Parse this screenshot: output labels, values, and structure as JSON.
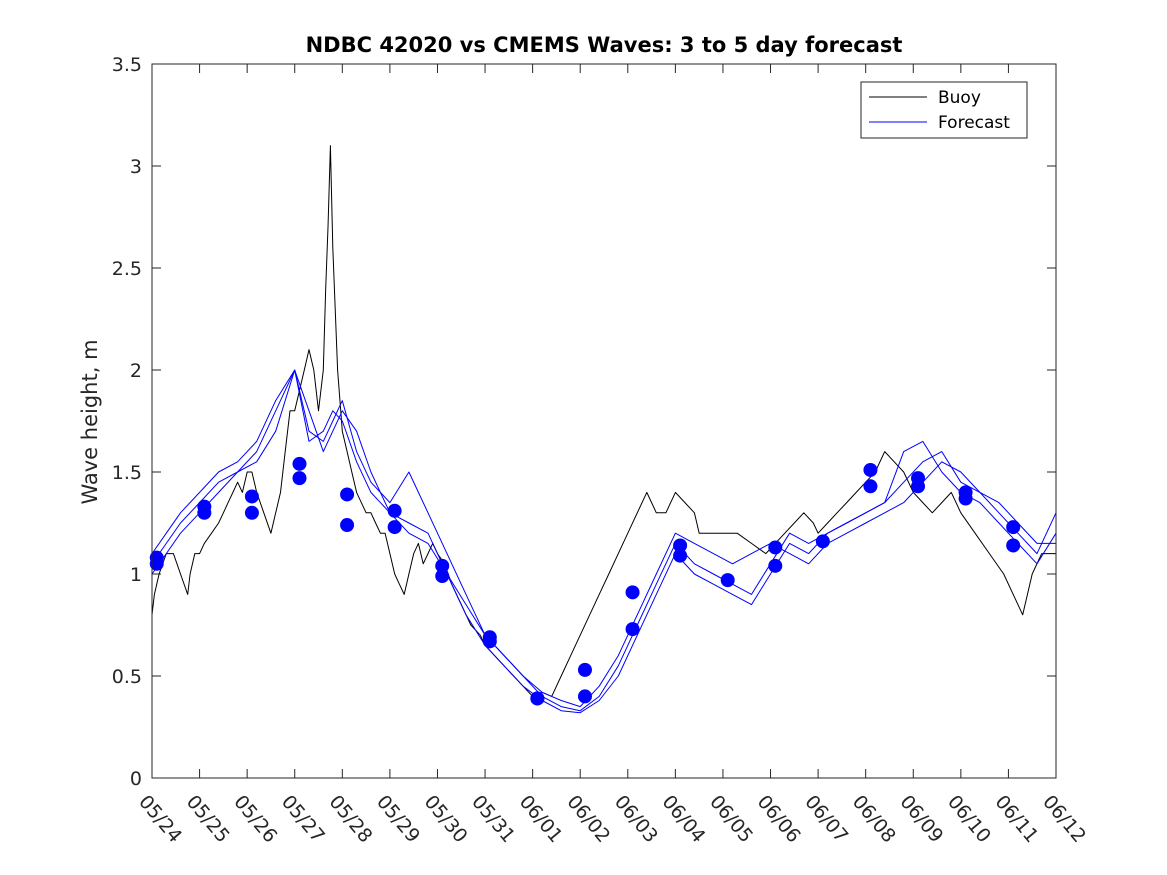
{
  "chart_data": {
    "type": "line",
    "title": "NDBC 42020 vs CMEMS Waves: 3 to 5 day forecast",
    "xlabel": "",
    "ylabel": "Wave height, m",
    "xlim": [
      0,
      19
    ],
    "ylim": [
      0,
      3.5
    ],
    "x_ticks": [
      "05/24",
      "05/25",
      "05/26",
      "05/27",
      "05/28",
      "05/29",
      "05/30",
      "05/31",
      "06/01",
      "06/02",
      "06/03",
      "06/04",
      "06/05",
      "06/06",
      "06/07",
      "06/08",
      "06/09",
      "06/10",
      "06/11",
      "06/12"
    ],
    "y_ticks": [
      "0",
      "0.5",
      "1",
      "1.5",
      "2",
      "2.5",
      "3",
      "3.5"
    ],
    "grid": false,
    "legend": {
      "placement": "top-right",
      "entries": [
        "Buoy",
        "Forecast"
      ]
    },
    "colors": {
      "Buoy": "#000000",
      "Forecast": "#0000ff",
      "markers": "#0000ff"
    },
    "series": [
      {
        "name": "Buoy",
        "x": [
          0.0,
          0.05,
          0.15,
          0.3,
          0.45,
          0.6,
          0.75,
          0.8,
          0.9,
          1.0,
          1.1,
          1.25,
          1.4,
          1.5,
          1.6,
          1.7,
          1.8,
          1.9,
          2.0,
          2.1,
          2.2,
          2.35,
          2.5,
          2.6,
          2.7,
          2.8,
          2.9,
          3.0,
          3.1,
          3.2,
          3.3,
          3.4,
          3.5,
          3.6,
          3.65,
          3.7,
          3.75,
          3.8,
          3.9,
          4.0,
          4.1,
          4.2,
          4.3,
          4.4,
          4.5,
          4.6,
          4.7,
          4.8,
          4.9,
          5.0,
          5.1,
          5.2,
          5.3,
          5.4,
          5.5,
          5.6,
          5.7,
          5.8,
          5.9,
          6.0,
          6.15,
          6.3,
          6.5,
          6.7,
          6.9,
          7.0,
          7.2,
          7.4,
          7.6,
          7.8,
          8.0,
          8.2,
          8.4,
          8.6,
          8.8,
          9.0,
          9.2,
          9.4,
          9.6,
          9.8,
          10.0,
          10.2,
          10.4,
          10.5,
          10.6,
          10.8,
          11.0,
          11.2,
          11.4,
          11.5,
          11.6,
          11.8,
          12.0,
          12.3,
          12.6,
          12.9,
          13.1,
          13.3,
          13.5,
          13.7,
          13.9,
          14.0,
          14.2,
          14.4,
          14.6,
          14.8,
          15.0,
          15.2,
          15.4,
          15.6,
          15.8,
          16.0,
          16.2,
          16.4,
          16.6,
          16.8,
          17.0,
          17.3,
          17.6,
          17.9,
          18.1,
          18.3,
          18.5,
          18.7,
          19.0
        ],
        "values": [
          0.8,
          0.9,
          1.0,
          1.1,
          1.1,
          1.0,
          0.9,
          1.0,
          1.1,
          1.1,
          1.15,
          1.2,
          1.25,
          1.3,
          1.35,
          1.4,
          1.45,
          1.4,
          1.5,
          1.5,
          1.4,
          1.3,
          1.2,
          1.3,
          1.4,
          1.6,
          1.8,
          1.8,
          1.9,
          2.0,
          2.1,
          2.0,
          1.8,
          2.0,
          2.4,
          2.7,
          3.1,
          2.6,
          2.0,
          1.7,
          1.6,
          1.5,
          1.4,
          1.35,
          1.3,
          1.3,
          1.25,
          1.2,
          1.2,
          1.1,
          1.0,
          0.95,
          0.9,
          1.0,
          1.1,
          1.15,
          1.05,
          1.1,
          1.15,
          1.1,
          1.05,
          0.95,
          0.85,
          0.75,
          0.7,
          0.65,
          0.6,
          0.55,
          0.5,
          0.45,
          0.4,
          0.42,
          0.4,
          0.5,
          0.6,
          0.7,
          0.8,
          0.9,
          1.0,
          1.1,
          1.2,
          1.3,
          1.4,
          1.35,
          1.3,
          1.3,
          1.4,
          1.35,
          1.3,
          1.2,
          1.2,
          1.2,
          1.2,
          1.2,
          1.15,
          1.1,
          1.15,
          1.2,
          1.25,
          1.3,
          1.25,
          1.2,
          1.25,
          1.3,
          1.35,
          1.4,
          1.45,
          1.5,
          1.6,
          1.55,
          1.5,
          1.4,
          1.35,
          1.3,
          1.35,
          1.4,
          1.3,
          1.2,
          1.1,
          1.0,
          0.9,
          0.8,
          1.0,
          1.1,
          1.1
        ]
      },
      {
        "name": "Forecast",
        "x": [
          0.0,
          0.3,
          0.6,
          1.0,
          1.4,
          1.8,
          2.2,
          2.6,
          3.0,
          3.3,
          3.6,
          3.8,
          4.0,
          4.3,
          4.6,
          5.0,
          5.4,
          5.8,
          6.2,
          6.6,
          7.0,
          7.4,
          7.8,
          8.2,
          8.6,
          9.0,
          9.4,
          9.8,
          10.2,
          10.6,
          11.0,
          11.4,
          11.8,
          12.2,
          12.6,
          13.0,
          13.4,
          13.8,
          14.2,
          14.6,
          15.0,
          15.4,
          15.8,
          16.2,
          16.6,
          17.0,
          17.4,
          17.8,
          18.2,
          18.6,
          19.0
        ],
        "values": [
          1.0,
          1.1,
          1.2,
          1.3,
          1.4,
          1.5,
          1.55,
          1.7,
          2.0,
          1.8,
          1.6,
          1.7,
          1.8,
          1.7,
          1.5,
          1.3,
          1.2,
          1.15,
          1.0,
          0.85,
          0.7,
          0.6,
          0.5,
          0.42,
          0.38,
          0.35,
          0.45,
          0.6,
          0.8,
          1.0,
          1.2,
          1.15,
          1.1,
          1.05,
          1.1,
          1.15,
          1.1,
          1.05,
          1.15,
          1.2,
          1.25,
          1.3,
          1.35,
          1.45,
          1.55,
          1.5,
          1.4,
          1.35,
          1.25,
          1.15,
          1.15
        ]
      },
      {
        "name": "",
        "x": [
          0.0,
          0.3,
          0.6,
          1.0,
          1.4,
          1.8,
          2.2,
          2.6,
          3.0,
          3.3,
          3.6,
          3.8,
          4.0,
          4.3,
          4.6,
          5.0,
          5.4,
          5.8,
          6.2,
          6.6,
          7.0,
          7.4,
          7.8,
          8.2,
          8.6,
          9.0,
          9.4,
          9.8,
          10.2,
          10.6,
          11.0,
          11.4,
          11.8,
          12.2,
          12.6,
          13.0,
          13.4,
          13.8,
          14.2,
          14.6,
          15.0,
          15.4,
          15.8,
          16.2,
          16.6,
          17.0,
          17.4,
          17.8,
          18.2,
          18.6,
          19.0
        ],
        "values": [
          1.05,
          1.15,
          1.25,
          1.35,
          1.45,
          1.5,
          1.6,
          1.8,
          2.0,
          1.7,
          1.65,
          1.75,
          1.85,
          1.6,
          1.45,
          1.35,
          1.5,
          1.3,
          1.1,
          0.9,
          0.7,
          0.6,
          0.5,
          0.4,
          0.35,
          0.33,
          0.4,
          0.55,
          0.75,
          0.95,
          1.15,
          1.05,
          1.0,
          0.95,
          0.9,
          1.05,
          1.2,
          1.15,
          1.2,
          1.25,
          1.3,
          1.35,
          1.45,
          1.55,
          1.6,
          1.45,
          1.4,
          1.3,
          1.2,
          1.1,
          1.3
        ]
      },
      {
        "name": "",
        "x": [
          0.0,
          0.3,
          0.6,
          1.0,
          1.4,
          1.8,
          2.2,
          2.6,
          3.0,
          3.3,
          3.6,
          3.8,
          4.0,
          4.3,
          4.6,
          5.0,
          5.4,
          5.8,
          6.2,
          6.6,
          7.0,
          7.4,
          7.8,
          8.2,
          8.6,
          9.0,
          9.4,
          9.8,
          10.2,
          10.6,
          11.0,
          11.4,
          11.8,
          12.2,
          12.6,
          13.0,
          13.4,
          13.8,
          14.2,
          14.6,
          15.0,
          15.4,
          15.8,
          16.2,
          16.6,
          17.0,
          17.4,
          17.8,
          18.2,
          18.6,
          19.0
        ],
        "values": [
          1.1,
          1.2,
          1.3,
          1.4,
          1.5,
          1.55,
          1.65,
          1.85,
          2.0,
          1.65,
          1.7,
          1.8,
          1.75,
          1.55,
          1.4,
          1.3,
          1.25,
          1.2,
          1.0,
          0.8,
          0.65,
          0.55,
          0.45,
          0.38,
          0.33,
          0.32,
          0.38,
          0.5,
          0.7,
          0.9,
          1.1,
          1.0,
          0.95,
          0.9,
          0.85,
          1.0,
          1.15,
          1.1,
          1.2,
          1.25,
          1.3,
          1.35,
          1.6,
          1.65,
          1.5,
          1.4,
          1.35,
          1.25,
          1.15,
          1.05,
          1.2
        ]
      }
    ],
    "markers": {
      "x": [
        0.1,
        0.1,
        1.1,
        1.1,
        2.1,
        2.1,
        3.1,
        3.1,
        4.1,
        4.1,
        5.1,
        5.1,
        6.1,
        6.1,
        7.1,
        7.1,
        8.1,
        8.1,
        9.1,
        9.1,
        10.1,
        10.1,
        11.1,
        11.1,
        12.1,
        13.1,
        13.1,
        14.1,
        15.1,
        15.1,
        16.1,
        16.1,
        17.1,
        17.1,
        18.1,
        18.1
      ],
      "values": [
        1.08,
        1.05,
        1.33,
        1.3,
        1.38,
        1.3,
        1.54,
        1.47,
        1.39,
        1.24,
        1.31,
        1.23,
        1.04,
        0.99,
        0.69,
        0.67,
        0.39,
        0.39,
        0.53,
        0.4,
        0.91,
        0.73,
        1.14,
        1.09,
        0.97,
        1.13,
        1.04,
        1.16,
        1.51,
        1.43,
        1.47,
        1.43,
        1.4,
        1.37,
        1.23,
        1.14
      ]
    }
  }
}
